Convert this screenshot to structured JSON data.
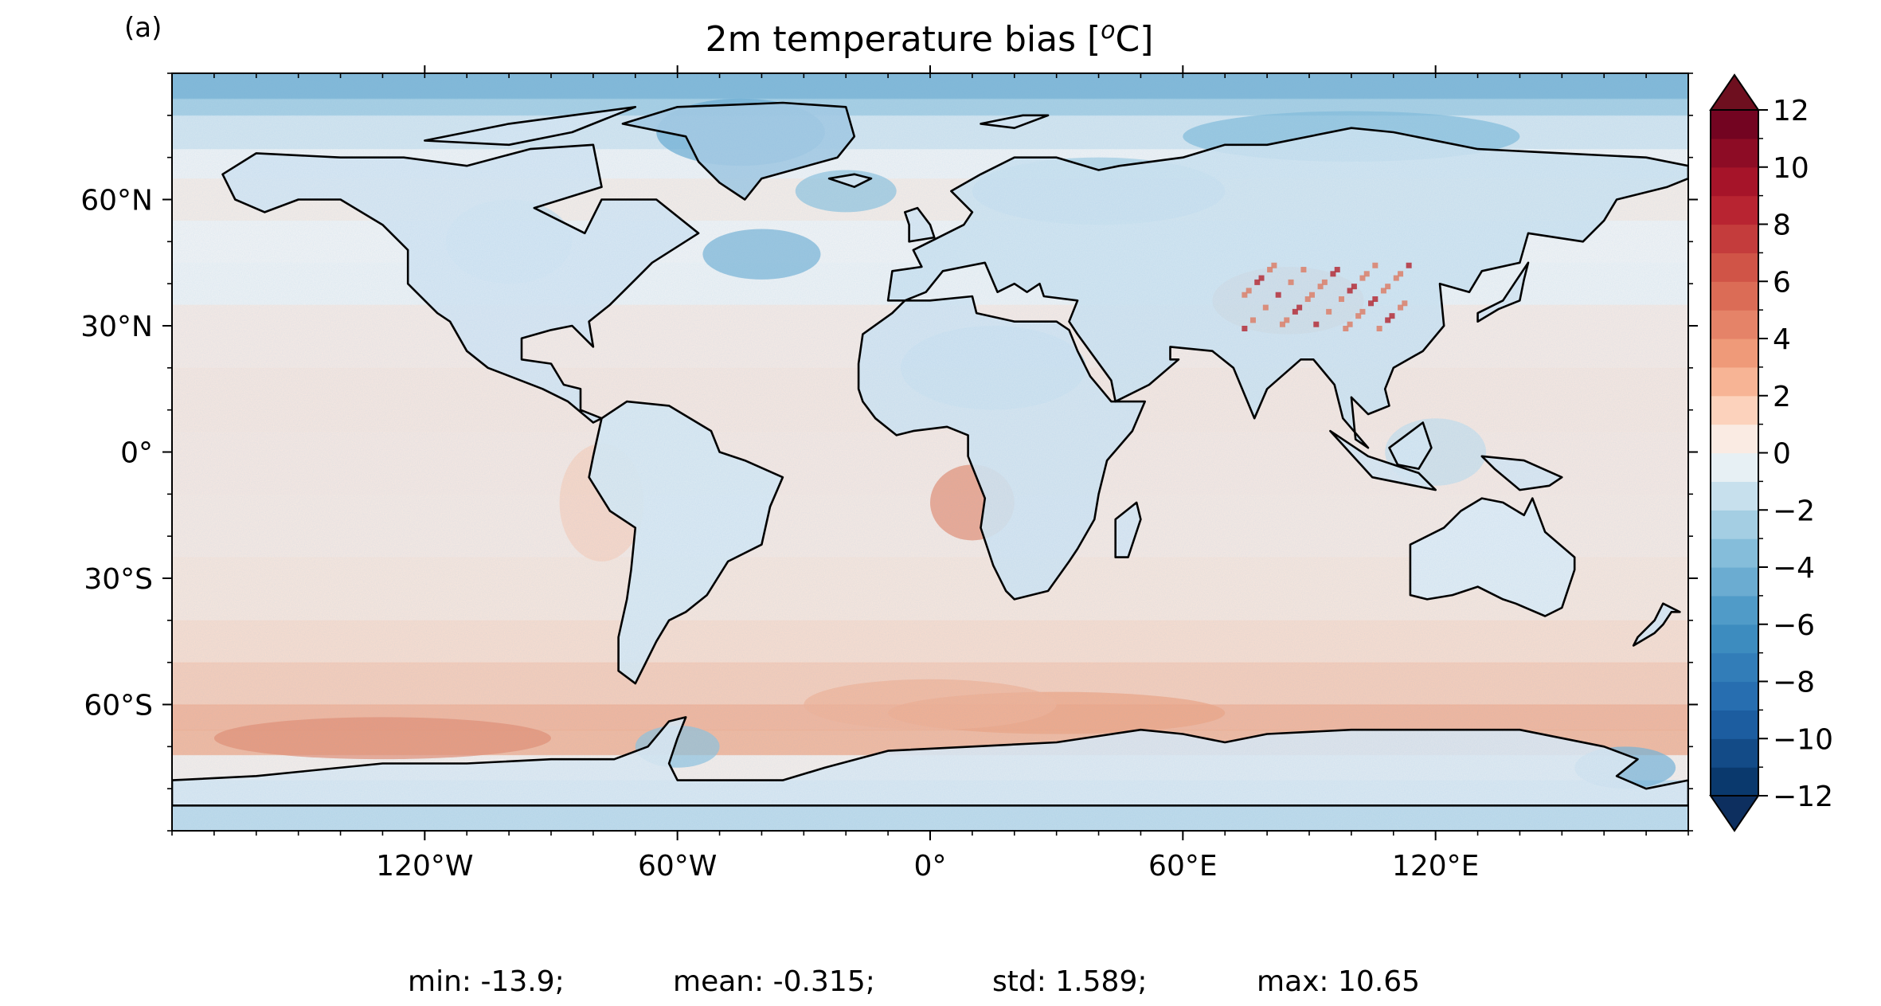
{
  "panel_label": "(a)",
  "title_prefix": "2m temperature bias [",
  "title_sup": "o",
  "title_suffix": "C]",
  "stats": {
    "min": "min: -13.9;",
    "mean": "mean: -0.315;",
    "std": "std: 1.589;",
    "max": "max: 10.65"
  },
  "map": {
    "projection": "PlateCarree",
    "lon_range": [
      -180,
      180
    ],
    "lat_range": [
      -90,
      90
    ],
    "lat_tick_labels": [
      "60°N",
      "30°N",
      "0°",
      "30°S",
      "60°S"
    ],
    "lat_tick_values": [
      60,
      30,
      0,
      -30,
      -60
    ],
    "lon_tick_labels": [
      "120°W",
      "60°W",
      "0°",
      "60°E",
      "120°E"
    ],
    "lon_tick_values": [
      -120,
      -60,
      0,
      60,
      120
    ],
    "minor_tick_step_deg": 10
  },
  "colorbar": {
    "levels": [
      -12,
      -11,
      -10,
      -9,
      -8,
      -7,
      -6,
      -5,
      -4,
      -3,
      -2,
      -1,
      0,
      1,
      2,
      3,
      4,
      5,
      6,
      7,
      8,
      9,
      10,
      11,
      12
    ],
    "tick_values": [
      12,
      10,
      8,
      6,
      4,
      2,
      0,
      -2,
      -4,
      -6,
      -8,
      -10,
      -12
    ],
    "tick_labels": [
      "12",
      "10",
      "8",
      "6",
      "4",
      "2",
      "0",
      "−2",
      "−4",
      "−6",
      "−8",
      "−10",
      "−12"
    ],
    "extend": "both",
    "colormap": "RdBu_r",
    "under_color": "#0d2f5f",
    "over_color": "#6e0f1f"
  },
  "colors": {
    "deep_blue": "#053061",
    "mid_blue": "#4393c3",
    "light_blue": "#d1e5f0",
    "white": "#f7f7f7",
    "light_red": "#fddbc7",
    "mid_red": "#d6604d",
    "deep_red": "#67001f"
  },
  "chart_data": {
    "type": "heatmap",
    "title": "2m temperature bias [oC]",
    "x": "longitude",
    "y": "latitude",
    "xlim": [
      -180,
      180
    ],
    "ylim": [
      -90,
      90
    ],
    "value_range": [
      -12,
      12
    ],
    "summary": {
      "min": -13.9,
      "mean": -0.315,
      "std": 1.589,
      "max": 10.65
    }
  }
}
